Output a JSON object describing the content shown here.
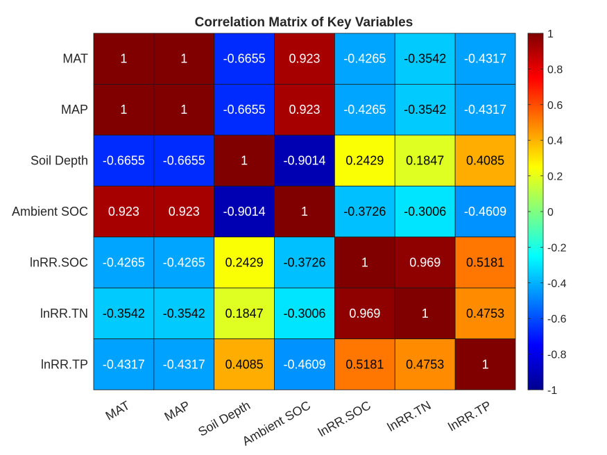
{
  "chart_data": {
    "type": "heatmap",
    "title": "Correlation Matrix of Key Variables",
    "xlabels": [
      "MAT",
      "MAP",
      "Soil Depth",
      "Ambient SOC",
      "lnRR.SOC",
      "lnRR.TN",
      "lnRR.TP"
    ],
    "ylabels": [
      "MAT",
      "MAP",
      "Soil Depth",
      "Ambient SOC",
      "lnRR.SOC",
      "lnRR.TN",
      "lnRR.TP"
    ],
    "values": [
      [
        1,
        1,
        -0.6655,
        0.923,
        -0.4265,
        -0.3542,
        -0.4317
      ],
      [
        1,
        1,
        -0.6655,
        0.923,
        -0.4265,
        -0.3542,
        -0.4317
      ],
      [
        -0.6655,
        -0.6655,
        1,
        -0.9014,
        0.2429,
        0.1847,
        0.4085
      ],
      [
        0.923,
        0.923,
        -0.9014,
        1,
        -0.3726,
        -0.3006,
        -0.4609
      ],
      [
        -0.4265,
        -0.4265,
        0.2429,
        -0.3726,
        1,
        0.969,
        0.5181
      ],
      [
        -0.3542,
        -0.3542,
        0.1847,
        -0.3006,
        0.969,
        1,
        0.4753
      ],
      [
        -0.4317,
        -0.4317,
        0.4085,
        -0.4609,
        0.5181,
        0.4753,
        1
      ]
    ],
    "labels": [
      [
        "1",
        "1",
        "-0.6655",
        "0.923",
        "-0.4265",
        "-0.3542",
        "-0.4317"
      ],
      [
        "1",
        "1",
        "-0.6655",
        "0.923",
        "-0.4265",
        "-0.3542",
        "-0.4317"
      ],
      [
        "-0.6655",
        "-0.6655",
        "1",
        "-0.9014",
        "0.2429",
        "0.1847",
        "0.4085"
      ],
      [
        "0.923",
        "0.923",
        "-0.9014",
        "1",
        "-0.3726",
        "-0.3006",
        "-0.4609"
      ],
      [
        "-0.4265",
        "-0.4265",
        "0.2429",
        "-0.3726",
        "1",
        "0.969",
        "0.5181"
      ],
      [
        "-0.3542",
        "-0.3542",
        "0.1847",
        "-0.3006",
        "0.969",
        "1",
        "0.4753"
      ],
      [
        "-0.4317",
        "-0.4317",
        "0.4085",
        "-0.4609",
        "0.5181",
        "0.4753",
        "1"
      ]
    ],
    "colormap": "jet",
    "clim": [
      -1,
      1
    ],
    "colorbar_ticks": [
      1,
      0.8,
      0.6,
      0.4,
      0.2,
      0,
      -0.2,
      -0.4,
      -0.6,
      -0.8,
      -1
    ],
    "colorbar_tick_labels": [
      "1",
      "0.8",
      "0.6",
      "0.4",
      "0.2",
      "0",
      "-0.2",
      "-0.4",
      "-0.6",
      "-0.8",
      "-1"
    ],
    "colorbar_position": "right",
    "x_tick_label_rotation_deg": -30
  }
}
